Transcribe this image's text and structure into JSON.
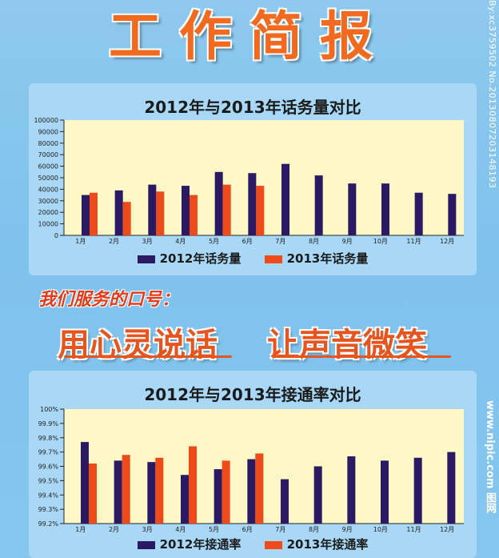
{
  "header": {
    "title": "工作简报"
  },
  "slogan": {
    "intro": "我们服务的口号：",
    "line1": "用心灵说话",
    "line2": "让声音微笑"
  },
  "watermark": {
    "side_id": "By:xc3759502 No.20130807203148193",
    "site": "www.nipic.com 图网"
  },
  "colors": {
    "series_2012": "#2b1a63",
    "series_2013": "#ee4a1a",
    "plot_bg": "#fdf8c6",
    "panel_bg": "#a8d8f6"
  },
  "chart_data": [
    {
      "type": "bar",
      "title": "2012年与2013年话务量对比",
      "categories": [
        "1月",
        "2月",
        "3月",
        "4月",
        "5月",
        "6月",
        "7月",
        "8月",
        "9月",
        "10月",
        "11月",
        "12月"
      ],
      "ylim": [
        0,
        100000
      ],
      "yticks": [
        "0",
        "10000",
        "20000",
        "30000",
        "40000",
        "50000",
        "60000",
        "70000",
        "80000",
        "90000",
        "100000"
      ],
      "series": [
        {
          "name": "2012年话务量",
          "values": [
            35000,
            39000,
            44000,
            43000,
            55000,
            54000,
            62000,
            52000,
            45000,
            45000,
            37000,
            36000
          ]
        },
        {
          "name": "2013年话务量",
          "values": [
            37000,
            29000,
            38000,
            35000,
            44000,
            43000,
            null,
            null,
            null,
            null,
            null,
            null
          ]
        }
      ],
      "legend": "bottom"
    },
    {
      "type": "bar",
      "title": "2012年与2013年接通率对比",
      "categories": [
        "1月",
        "2月",
        "3月",
        "4月",
        "5月",
        "6月",
        "7月",
        "8月",
        "9月",
        "10月",
        "11月",
        "12月"
      ],
      "ylim": [
        99.2,
        100
      ],
      "yticks": [
        "99.2%",
        "99.3%",
        "99.4%",
        "99.5%",
        "99.6%",
        "99.7%",
        "99.8%",
        "99.9%",
        "100%"
      ],
      "series": [
        {
          "name": "2012年接通率",
          "values": [
            99.77,
            99.64,
            99.63,
            99.54,
            99.58,
            99.65,
            99.51,
            99.6,
            99.67,
            99.64,
            99.66,
            99.7
          ]
        },
        {
          "name": "2013年接通率",
          "values": [
            99.62,
            99.68,
            99.66,
            99.74,
            99.64,
            99.69,
            null,
            null,
            null,
            null,
            null,
            null
          ]
        }
      ],
      "legend": "bottom"
    }
  ]
}
